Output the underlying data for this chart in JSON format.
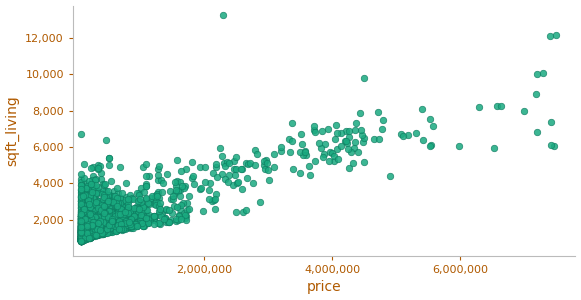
{
  "title": "",
  "xlabel": "price",
  "ylabel": "sqft_living",
  "xlabel_color": "#b05a00",
  "ylabel_color": "#b05a00",
  "tick_color": "#b05a00",
  "dot_color": "#1aaa80",
  "dot_edge_color": "#0d7a5f",
  "dot_alpha": 0.85,
  "dot_size": 22,
  "xlim": [
    -50000,
    7800000
  ],
  "ylim": [
    0,
    13800
  ],
  "xticks": [
    2000000,
    4000000,
    6000000
  ],
  "yticks": [
    2000,
    4000,
    6000,
    8000,
    10000,
    12000
  ],
  "background_color": "#ffffff",
  "border_color": "#bbbbbb",
  "seed": 7
}
